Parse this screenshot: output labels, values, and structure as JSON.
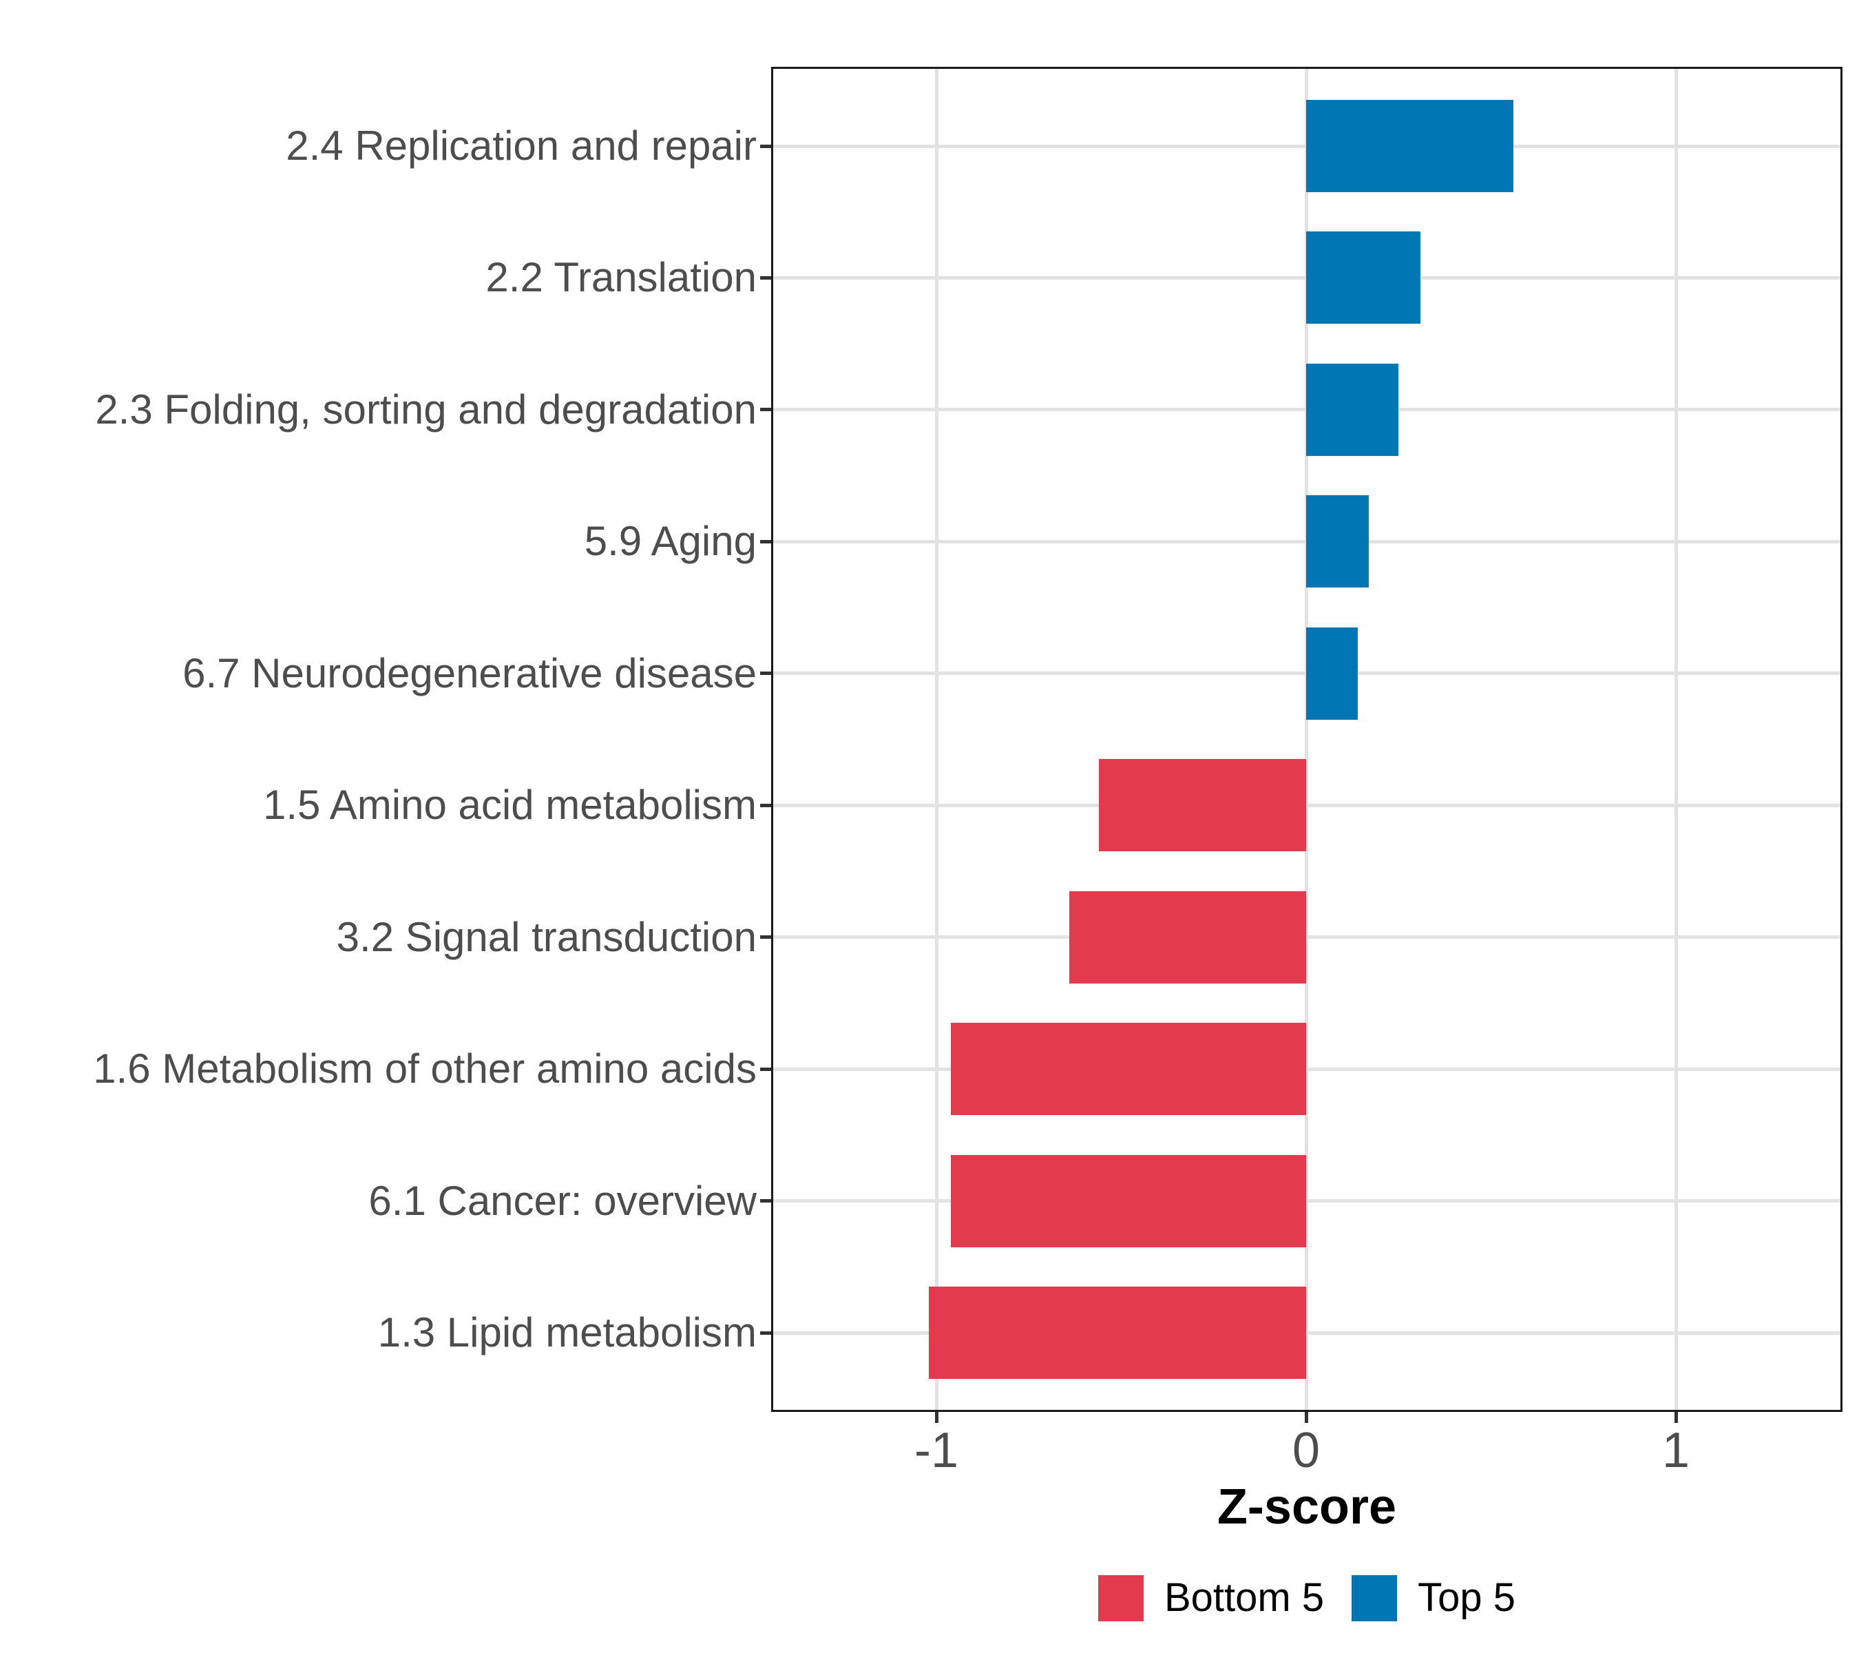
{
  "chart_data": {
    "type": "bar",
    "orientation": "horizontal",
    "title": "",
    "xlabel": "Z-score",
    "ylabel": "",
    "categories": [
      "2.4 Replication and repair",
      "2.2 Translation",
      "2.3 Folding, sorting and degradation",
      "5.9 Aging",
      "6.7 Neurodegenerative disease",
      "1.5 Amino acid metabolism",
      "3.2 Signal transduction",
      "1.6 Metabolism of other amino acids",
      "6.1 Cancer: overview",
      "1.3 Lipid metabolism"
    ],
    "values": [
      0.56,
      0.31,
      0.25,
      0.17,
      0.14,
      -0.56,
      -0.64,
      -0.96,
      -0.96,
      -1.02
    ],
    "groups": [
      "Top 5",
      "Top 5",
      "Top 5",
      "Top 5",
      "Top 5",
      "Bottom 5",
      "Bottom 5",
      "Bottom 5",
      "Bottom 5",
      "Bottom 5"
    ],
    "colors": {
      "Bottom 5": "#e23b4d",
      "Top 5": "#0076b4"
    },
    "x_ticks": [
      "-1",
      "0",
      "1"
    ],
    "x_tick_values": [
      -1,
      0,
      1
    ],
    "xlim": [
      -1.45,
      1.45
    ],
    "grid": "major",
    "gridline_color": "#e2e2e2",
    "panel_border_color": "#1a1a1a",
    "axis_text_color": "#4d4d4d",
    "legend_position": "bottom",
    "legend": [
      {
        "label": "Bottom 5",
        "color": "#e23b4d"
      },
      {
        "label": "Top 5",
        "color": "#0076b4"
      }
    ]
  }
}
